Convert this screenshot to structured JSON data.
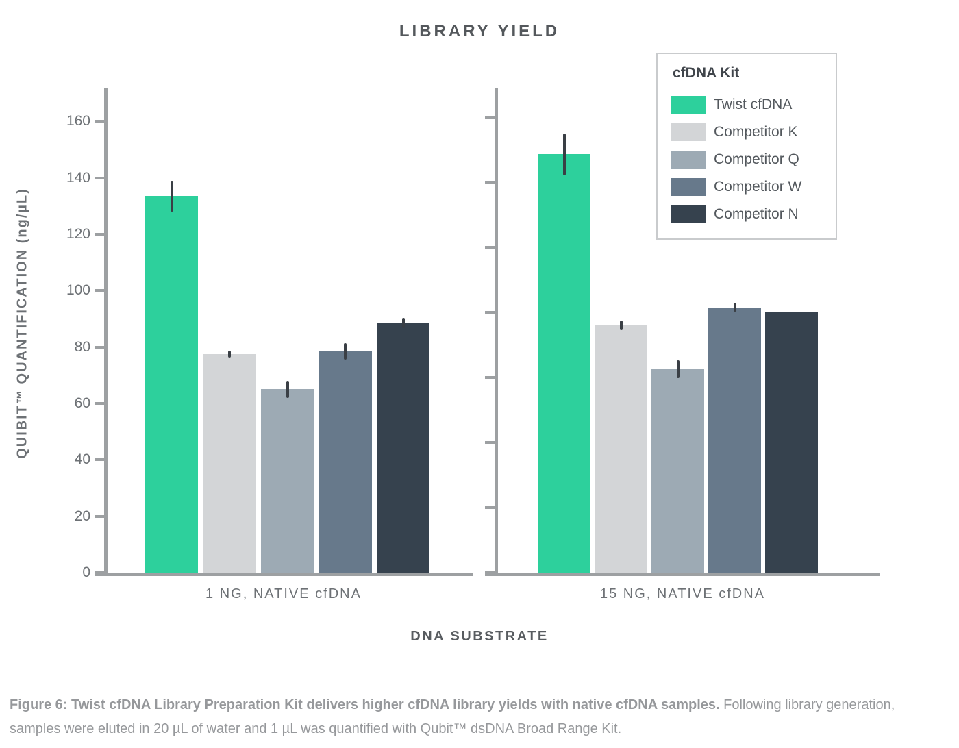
{
  "title": "LIBRARY YIELD",
  "ylabel": "QUIBIT™ QUANTIFICATION (ng/µL)",
  "xlabel": "DNA SUBSTRATE",
  "legend": {
    "title": "cfDNA Kit",
    "items": [
      {
        "label": "Twist cfDNA",
        "color": "#2dd09c"
      },
      {
        "label": "Competitor K",
        "color": "#d3d5d7"
      },
      {
        "label": "Competitor Q",
        "color": "#9daab4"
      },
      {
        "label": "Competitor W",
        "color": "#67798b"
      },
      {
        "label": "Competitor N",
        "color": "#36424e"
      }
    ]
  },
  "chart_data": {
    "type": "bar",
    "title": "LIBRARY YIELD",
    "ylabel": "QUIBIT™ QUANTIFICATION (ng/µL)",
    "xlabel": "DNA SUBSTRATE",
    "grid": false,
    "legend_position": "top-right",
    "error_bars": true,
    "categories": [
      "1 NG, NATIVE cfDNA",
      "15 NG, NATIVE cfDNA"
    ],
    "panels": [
      {
        "category": "1 NG, NATIVE cfDNA",
        "ylim": [
          0,
          172
        ],
        "yticks": [
          0,
          20,
          40,
          60,
          80,
          100,
          120,
          140,
          160
        ],
        "tick_labels_visible": true
      },
      {
        "category": "15 NG, NATIVE cfDNA",
        "ylim": [
          0,
          149
        ],
        "yticks": [
          0,
          20,
          40,
          60,
          80,
          100,
          120,
          140
        ],
        "tick_labels_visible": false
      }
    ],
    "series": [
      {
        "name": "Twist cfDNA",
        "color": "#2dd09c",
        "values": [
          133.5,
          128.5
        ],
        "errors": [
          5.5,
          6.5
        ]
      },
      {
        "name": "Competitor K",
        "color": "#d3d5d7",
        "values": [
          77.5,
          76
        ],
        "errors": [
          1.3,
          1.5
        ]
      },
      {
        "name": "Competitor Q",
        "color": "#9daab4",
        "values": [
          65,
          62.5
        ],
        "errors": [
          3,
          2.7
        ]
      },
      {
        "name": "Competitor W",
        "color": "#67798b",
        "values": [
          78.5,
          81.5
        ],
        "errors": [
          3,
          1.4
        ]
      },
      {
        "name": "Competitor N",
        "color": "#36424e",
        "values": [
          88.5,
          80
        ],
        "errors": [
          1.8,
          0
        ]
      }
    ]
  },
  "caption": {
    "bold": "Figure 6: Twist cfDNA Library Preparation Kit delivers higher cfDNA library yields with native cfDNA samples.",
    "rest": " Following library generation, samples were eluted in 20 µL of water and 1 µL was quantified with Qubit™ dsDNA Broad Range Kit."
  }
}
